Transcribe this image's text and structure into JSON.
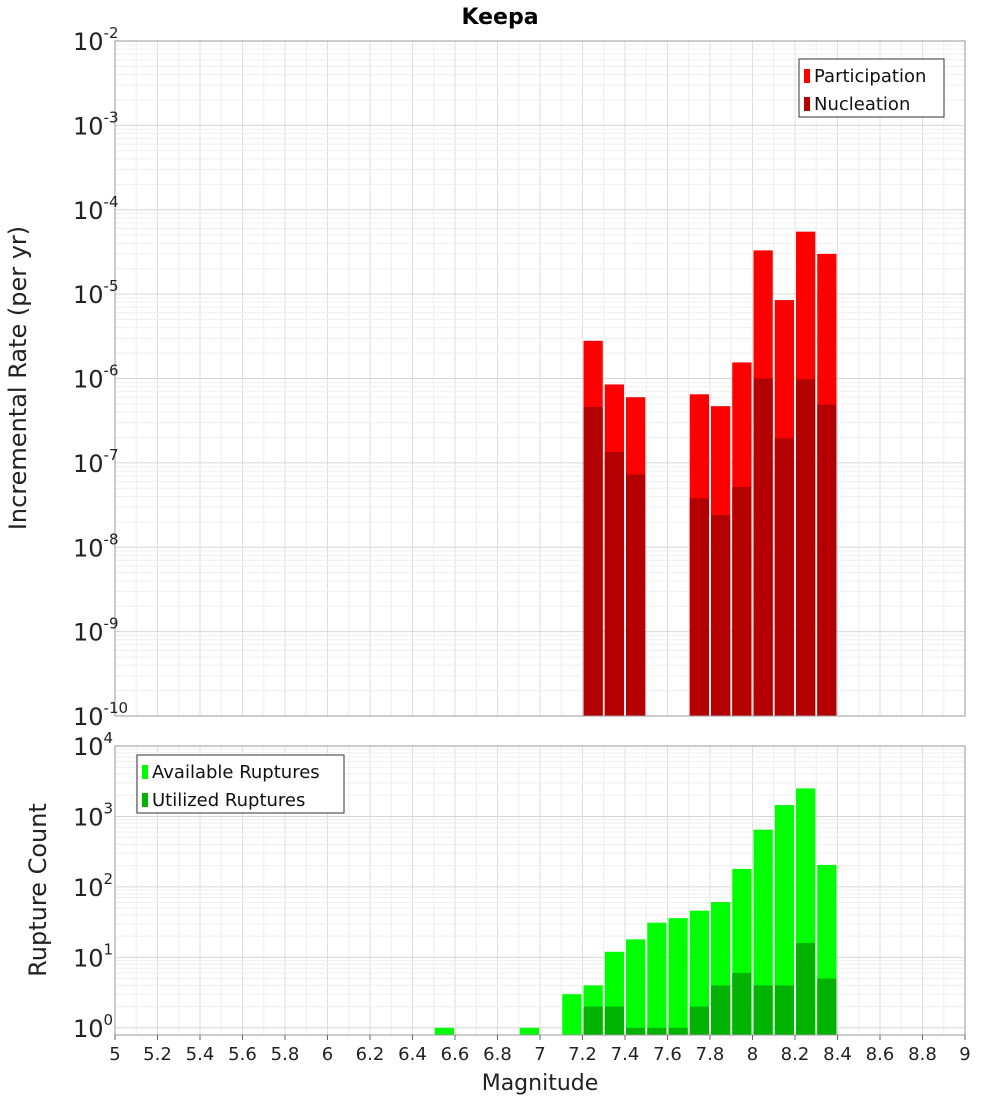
{
  "title": "Keepa",
  "colors": {
    "participation": "#ff0000",
    "nucleation": "#b30000",
    "available": "#00ff00",
    "utilized": "#00b300"
  },
  "chart_data": [
    {
      "type": "bar",
      "scale": "log",
      "ylabel": "Incremental Rate (per yr)",
      "ylim": [
        1e-10,
        0.01
      ],
      "ytick_exponents": [
        -10,
        -9,
        -8,
        -7,
        -6,
        -5,
        -4,
        -3,
        -2
      ],
      "grid": true,
      "legend_position": "top-right",
      "x": [
        7.25,
        7.35,
        7.45,
        7.75,
        7.85,
        7.95,
        8.05,
        8.15,
        8.25,
        8.35
      ],
      "series": [
        {
          "name": "Participation",
          "color_key": "participation",
          "values": [
            2.8e-06,
            8.5e-07,
            6e-07,
            6.5e-07,
            4.7e-07,
            1.55e-06,
            3.3e-05,
            8.5e-06,
            5.5e-05,
            3e-05
          ]
        },
        {
          "name": "Nucleation",
          "color_key": "nucleation",
          "values": [
            4.6e-07,
            1.35e-07,
            7.3e-08,
            3.8e-08,
            2.4e-08,
            5.2e-08,
            1e-06,
            1.95e-07,
            9.8e-07,
            4.9e-07
          ]
        }
      ]
    },
    {
      "type": "bar",
      "scale": "log",
      "ylabel": "Rupture Count",
      "ylim": [
        0.79,
        10000.0
      ],
      "ytick_exponents": [
        0,
        1,
        2,
        3,
        4
      ],
      "grid": true,
      "legend_position": "top-left",
      "x": [
        6.55,
        6.95,
        7.15,
        7.25,
        7.35,
        7.45,
        7.55,
        7.65,
        7.75,
        7.85,
        7.95,
        8.05,
        8.15,
        8.25,
        8.35
      ],
      "series": [
        {
          "name": "Available Ruptures",
          "color_key": "available",
          "values": [
            1,
            1,
            3,
            4,
            12,
            18,
            31,
            36,
            46,
            61,
            180,
            650,
            1450,
            2500,
            205
          ]
        },
        {
          "name": "Utilized Ruptures",
          "color_key": "utilized",
          "values": [
            0,
            0,
            0,
            2,
            2,
            1,
            1,
            1,
            2,
            4,
            6,
            4,
            4,
            16,
            5
          ]
        }
      ]
    }
  ],
  "xaxis": {
    "label": "Magnitude",
    "range": [
      5,
      9
    ],
    "ticks": [
      5,
      5.2,
      5.4,
      5.6,
      5.8,
      6,
      6.2,
      6.4,
      6.6,
      6.8,
      7,
      7.2,
      7.4,
      7.6,
      7.8,
      8,
      8.2,
      8.4,
      8.6,
      8.8,
      9
    ],
    "tick_labels": [
      "5",
      "5.2",
      "5.4",
      "5.6",
      "5.8",
      "6",
      "6.2",
      "6.4",
      "6.6",
      "6.8",
      "7",
      "7.2",
      "7.4",
      "7.6",
      "7.8",
      "8",
      "8.2",
      "8.4",
      "8.6",
      "8.8",
      "9"
    ],
    "bin_width": 0.1
  }
}
